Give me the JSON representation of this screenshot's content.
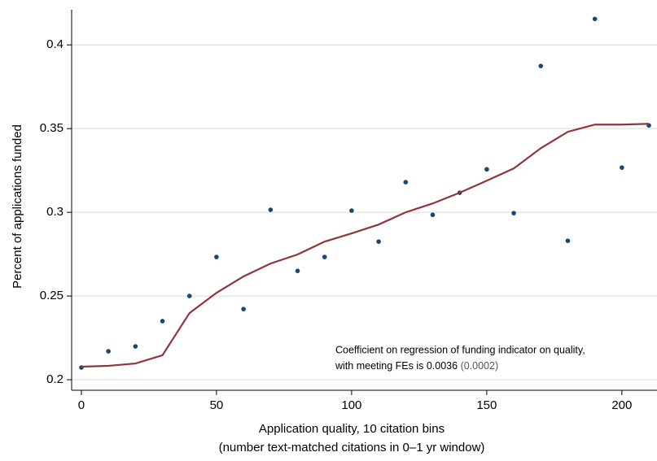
{
  "chart_data": {
    "type": "scatter",
    "x_label": [
      "Application quality, 10 citation bins",
      "(number text-matched citations in 0–1 yr window)"
    ],
    "y_label": "Percent of applications funded",
    "annotation": [
      "Coefficient on regression of funding indicator on quality,",
      "with meeting FEs is 0.0036",
      "(0.0002)"
    ],
    "x": [
      0,
      10,
      20,
      30,
      40,
      50,
      60,
      70,
      80,
      90,
      100,
      110,
      120,
      130,
      140,
      150,
      160,
      170,
      180,
      190,
      200,
      210
    ],
    "series": [
      {
        "type": "scatter",
        "color": "#1a476f",
        "values": [
          0.2073,
          0.217,
          0.2199,
          0.235,
          0.25,
          0.2733,
          0.2422,
          0.3015,
          0.265,
          0.2733,
          0.301,
          0.2825,
          0.318,
          0.2985,
          0.3117,
          0.3257,
          0.2995,
          0.3874,
          0.283,
          0.4155,
          0.3267,
          0.3519
        ]
      },
      {
        "type": "line",
        "color": "#90353b",
        "values": [
          0.2078,
          0.2083,
          0.2097,
          0.2146,
          0.2398,
          0.2519,
          0.2617,
          0.2694,
          0.2748,
          0.2825,
          0.2874,
          0.2927,
          0.3,
          0.3053,
          0.3117,
          0.3189,
          0.3262,
          0.3383,
          0.3481,
          0.3524,
          0.3524,
          0.3529
        ]
      }
    ],
    "xlim": [
      -3.6,
      213
    ],
    "ylim": [
      0.1937,
      0.421
    ],
    "xticks": [
      0,
      50,
      100,
      150,
      200
    ],
    "yticks": [
      0.2,
      0.25,
      0.3,
      0.35,
      0.4
    ],
    "grid": true
  }
}
